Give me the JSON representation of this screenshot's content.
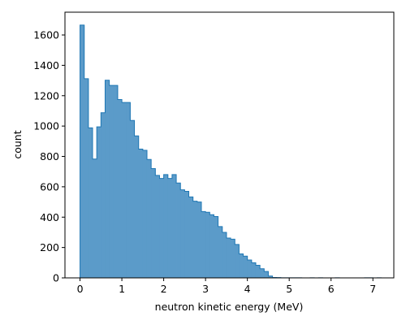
{
  "chart_data": {
    "type": "histogram",
    "title": "",
    "xlabel": "neutron kinetic energy (MeV)",
    "ylabel": "count",
    "xlim": [
      -0.36,
      7.5
    ],
    "ylim": [
      0,
      1750
    ],
    "xticks": [
      0,
      1,
      2,
      3,
      4,
      5,
      6,
      7
    ],
    "yticks": [
      0,
      200,
      400,
      600,
      800,
      1000,
      1200,
      1400,
      1600
    ],
    "grid": false,
    "bin_width": 0.1,
    "bin_start": 0.0,
    "counts": [
      1665,
      1312,
      988,
      783,
      995,
      1088,
      1302,
      1268,
      1268,
      1175,
      1155,
      1155,
      1037,
      935,
      848,
      840,
      780,
      720,
      675,
      655,
      680,
      655,
      680,
      625,
      580,
      570,
      533,
      505,
      500,
      437,
      432,
      416,
      404,
      338,
      300,
      262,
      255,
      220,
      158,
      143,
      118,
      100,
      83,
      60,
      42,
      12,
      3,
      2,
      1,
      1,
      1,
      1,
      1,
      0,
      0,
      1,
      0,
      1,
      0,
      0,
      0,
      1,
      0,
      0,
      0,
      0,
      0,
      0,
      1,
      1,
      0,
      1
    ],
    "colors": {
      "fill": "#5b9bc9",
      "edge": "#1f77b4"
    }
  }
}
